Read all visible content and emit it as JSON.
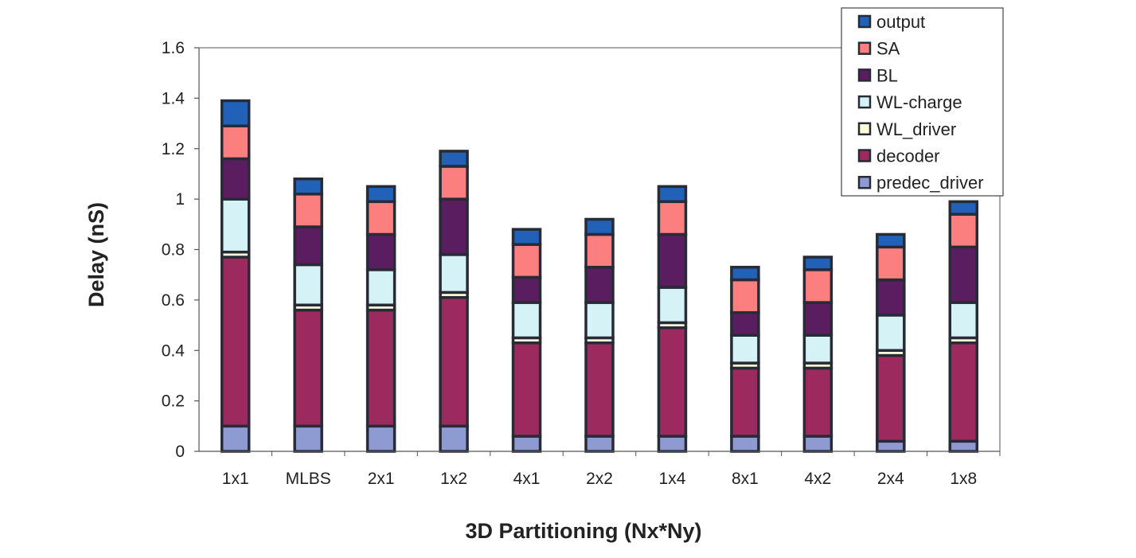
{
  "chart_data": {
    "type": "bar",
    "stacked": true,
    "title": "",
    "xlabel": "3D Partitioning (Nx*Ny)",
    "ylabel": "Delay (nS)",
    "ylim": [
      0,
      1.6
    ],
    "yticks": [
      "0",
      "0.2",
      "0.4",
      "0.6",
      "0.8",
      "1",
      "1.2",
      "1.4",
      "1.6"
    ],
    "grid": false,
    "legend_position": "top-right",
    "categories": [
      "1x1",
      "MLBS",
      "2x1",
      "1x2",
      "4x1",
      "2x2",
      "1x4",
      "8x1",
      "4x2",
      "2x4",
      "1x8"
    ],
    "series": [
      {
        "name": "predec_driver",
        "color": "#8e9bd3",
        "values": [
          0.1,
          0.1,
          0.1,
          0.1,
          0.06,
          0.06,
          0.06,
          0.06,
          0.06,
          0.04,
          0.04
        ]
      },
      {
        "name": "decoder",
        "color": "#9c2a5e",
        "values": [
          0.67,
          0.46,
          0.46,
          0.51,
          0.37,
          0.37,
          0.43,
          0.27,
          0.27,
          0.34,
          0.39
        ]
      },
      {
        "name": "WL_driver",
        "color": "#fdfbd8",
        "values": [
          0.02,
          0.02,
          0.02,
          0.02,
          0.02,
          0.02,
          0.02,
          0.02,
          0.02,
          0.02,
          0.02
        ]
      },
      {
        "name": "WL-charge",
        "color": "#d5f2f7",
        "values": [
          0.21,
          0.16,
          0.14,
          0.15,
          0.14,
          0.14,
          0.14,
          0.11,
          0.11,
          0.14,
          0.14
        ]
      },
      {
        "name": "BL",
        "color": "#5a1e60",
        "values": [
          0.16,
          0.15,
          0.14,
          0.22,
          0.1,
          0.14,
          0.21,
          0.09,
          0.13,
          0.14,
          0.22
        ]
      },
      {
        "name": "SA",
        "color": "#fc7f80",
        "values": [
          0.13,
          0.13,
          0.13,
          0.13,
          0.13,
          0.13,
          0.13,
          0.13,
          0.13,
          0.13,
          0.13
        ]
      },
      {
        "name": "output",
        "color": "#2161b8",
        "values": [
          0.1,
          0.06,
          0.06,
          0.06,
          0.06,
          0.06,
          0.06,
          0.05,
          0.05,
          0.05,
          0.05
        ]
      }
    ],
    "legend_order": [
      "output",
      "SA",
      "BL",
      "WL-charge",
      "WL_driver",
      "decoder",
      "predec_driver"
    ]
  }
}
